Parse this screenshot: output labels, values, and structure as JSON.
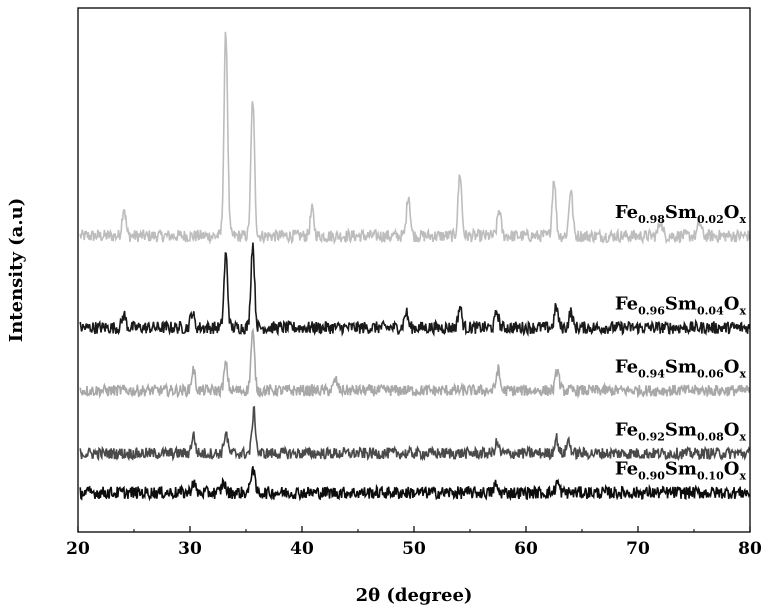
{
  "chart_data": {
    "type": "line",
    "title": "",
    "xlabel": "2θ (degree)",
    "ylabel": "Intensity (a.u)",
    "xlim": [
      20,
      80
    ],
    "xticks": [
      20,
      30,
      40,
      50,
      60,
      70,
      80
    ],
    "ylim": [
      0,
      1
    ],
    "grid": false,
    "legend": "series labels at right end of each trace",
    "series": [
      {
        "name": "Fe0.98Sm0.02Ox",
        "label_parts": [
          "Fe",
          "0.98",
          "Sm",
          "0.02",
          "O",
          "x"
        ],
        "color": "#bdbdbd",
        "baseline": 0.565,
        "noise": 0.012,
        "peaks": [
          [
            24.1,
            0.055
          ],
          [
            33.2,
            0.39
          ],
          [
            35.6,
            0.26
          ],
          [
            40.9,
            0.05
          ],
          [
            49.5,
            0.08
          ],
          [
            54.1,
            0.12
          ],
          [
            57.6,
            0.05
          ],
          [
            62.5,
            0.11
          ],
          [
            64.0,
            0.09
          ],
          [
            72.0,
            0.03
          ],
          [
            75.5,
            0.025
          ]
        ]
      },
      {
        "name": "Fe0.96Sm0.04Ox",
        "label_parts": [
          "Fe",
          "0.96",
          "Sm",
          "0.04",
          "O",
          "x"
        ],
        "color": "#1a1a1a",
        "baseline": 0.39,
        "noise": 0.012,
        "peaks": [
          [
            24.1,
            0.025
          ],
          [
            30.2,
            0.03
          ],
          [
            33.2,
            0.14
          ],
          [
            35.6,
            0.16
          ],
          [
            49.3,
            0.03
          ],
          [
            54.1,
            0.04
          ],
          [
            57.4,
            0.03
          ],
          [
            62.7,
            0.04
          ],
          [
            64.0,
            0.03
          ]
        ]
      },
      {
        "name": "Fe0.94Sm0.06Ox",
        "label_parts": [
          "Fe",
          "0.94",
          "Sm",
          "0.06",
          "O",
          "x"
        ],
        "color": "#a8a8a8",
        "baseline": 0.27,
        "noise": 0.011,
        "peaks": [
          [
            30.3,
            0.04
          ],
          [
            33.2,
            0.05
          ],
          [
            35.6,
            0.11
          ],
          [
            43.0,
            0.02
          ],
          [
            57.5,
            0.04
          ],
          [
            62.8,
            0.04
          ]
        ]
      },
      {
        "name": "Fe0.92Sm0.08Ox",
        "label_parts": [
          "Fe",
          "0.92",
          "Sm",
          "0.08",
          "O",
          "x"
        ],
        "color": "#4a4a4a",
        "baseline": 0.15,
        "noise": 0.011,
        "peaks": [
          [
            30.3,
            0.035
          ],
          [
            33.2,
            0.04
          ],
          [
            35.7,
            0.08
          ],
          [
            57.4,
            0.02
          ],
          [
            62.7,
            0.03
          ],
          [
            63.8,
            0.025
          ]
        ]
      },
      {
        "name": "Fe0.90Sm0.10Ox",
        "label_parts": [
          "Fe",
          "0.90",
          "Sm",
          "0.10",
          "O",
          "x"
        ],
        "color": "#0d0d0d",
        "baseline": 0.075,
        "noise": 0.012,
        "peaks": [
          [
            30.3,
            0.02
          ],
          [
            33.0,
            0.02
          ],
          [
            35.6,
            0.05
          ],
          [
            57.3,
            0.015
          ],
          [
            62.8,
            0.02
          ]
        ]
      }
    ]
  }
}
